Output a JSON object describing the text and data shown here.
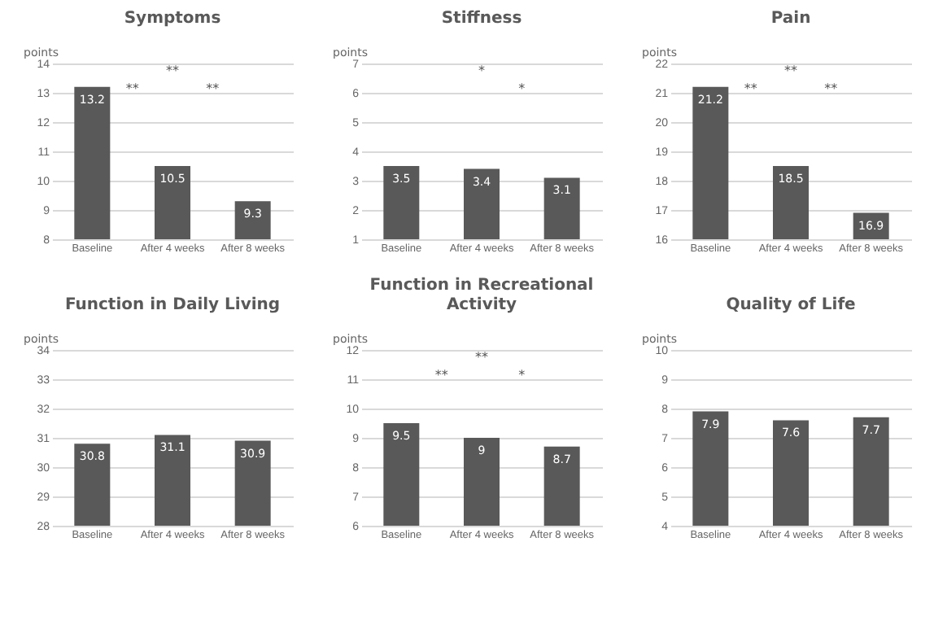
{
  "chart_data": [
    {
      "type": "bar",
      "title": "Symptoms",
      "ylabel": "points",
      "categories": [
        "Baseline",
        "After 4 weeks",
        "After 8 weeks"
      ],
      "values": [
        13.2,
        10.5,
        9.3
      ],
      "color": "#595959",
      "ylim": [
        8,
        14
      ],
      "yticks": [
        8,
        9,
        10,
        11,
        12,
        13,
        14
      ],
      "grid": "y",
      "data_labels": true,
      "annotations": [
        "**",
        "**",
        "**"
      ]
    },
    {
      "type": "bar",
      "title": "Stiffness",
      "ylabel": "points",
      "categories": [
        "Baseline",
        "After 4 weeks",
        "After 8 weeks"
      ],
      "values": [
        3.5,
        3.4,
        3.1
      ],
      "color": "#595959",
      "ylim": [
        1,
        7
      ],
      "yticks": [
        1,
        2,
        3,
        4,
        5,
        6,
        7
      ],
      "grid": "y",
      "data_labels": true,
      "annotations": [
        "*",
        "*"
      ]
    },
    {
      "type": "bar",
      "title": "Pain",
      "ylabel": "points",
      "categories": [
        "Baseline",
        "After 4 weeks",
        "After 8 weeks"
      ],
      "values": [
        21.2,
        18.5,
        16.9
      ],
      "color": "#595959",
      "ylim": [
        16,
        22
      ],
      "yticks": [
        16,
        17,
        18,
        19,
        20,
        21,
        22
      ],
      "grid": "y",
      "data_labels": true,
      "annotations": [
        "**",
        "**",
        "**"
      ]
    },
    {
      "type": "bar",
      "title": "Function in Daily Living",
      "ylabel": "points",
      "categories": [
        "Baseline",
        "After 4 weeks",
        "After 8 weeks"
      ],
      "values": [
        30.8,
        31.1,
        30.9
      ],
      "color": "#595959",
      "ylim": [
        28,
        34
      ],
      "yticks": [
        28,
        29,
        30,
        31,
        32,
        33,
        34
      ],
      "grid": "y",
      "data_labels": true
    },
    {
      "type": "bar",
      "title": "Function in Recreational Activity",
      "ylabel": "points",
      "categories": [
        "Baseline",
        "After 4 weeks",
        "After 8 weeks"
      ],
      "values": [
        9.5,
        9,
        8.7
      ],
      "color": "#595959",
      "ylim": [
        6,
        12
      ],
      "yticks": [
        6,
        7,
        8,
        9,
        10,
        11,
        12
      ],
      "grid": "y",
      "data_labels": true,
      "annotations": [
        "**",
        "**",
        "*"
      ]
    },
    {
      "type": "bar",
      "title": "Quality of Life",
      "ylabel": "points",
      "categories": [
        "Baseline",
        "After 4 weeks",
        "After 8 weeks"
      ],
      "values": [
        7.9,
        7.6,
        7.7
      ],
      "color": "#595959",
      "ylim": [
        4,
        10
      ],
      "yticks": [
        4,
        5,
        6,
        7,
        8,
        9,
        10
      ],
      "grid": "y",
      "data_labels": true
    }
  ]
}
